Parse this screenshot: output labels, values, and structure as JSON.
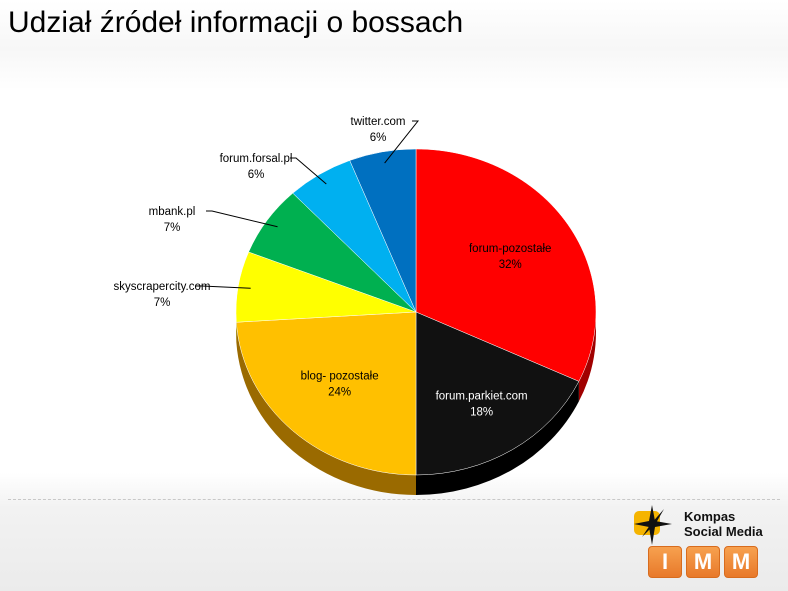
{
  "page": {
    "title": "Udział źródeł informacji o bossach"
  },
  "chart_data": {
    "type": "pie",
    "title": "Udział źródeł informacji o bossach",
    "slices": [
      {
        "label": "forum-pozostałe",
        "value": 32,
        "value_label": "32%",
        "color": "#ff0000",
        "side": "#a00000"
      },
      {
        "label": "forum.parkiet.com",
        "value": 18,
        "value_label": "18%",
        "color": "#111111",
        "side": "#000000"
      },
      {
        "label": "blog- pozostałe",
        "value": 24,
        "value_label": "24%",
        "color": "#ffc000",
        "side": "#9a6a00"
      },
      {
        "label": "skyscrapercity.com",
        "value": 7,
        "value_label": "7%",
        "color": "#ffff00",
        "side": "#a8a800"
      },
      {
        "label": "mbank.pl",
        "value": 7,
        "value_label": "7%",
        "color": "#00b050",
        "side": "#006a2e"
      },
      {
        "label": "forum.forsal.pl",
        "value": 6,
        "value_label": "6%",
        "color": "#00b0f0",
        "side": "#006a92"
      },
      {
        "label": "twitter.com",
        "value": 6,
        "value_label": "6%",
        "color": "#0070c0",
        "side": "#003f70"
      }
    ]
  },
  "logo": {
    "line1": "Kompas",
    "line2": "Social Media",
    "boxes": [
      "I",
      "M",
      "M"
    ],
    "accent": "#e8792a"
  }
}
